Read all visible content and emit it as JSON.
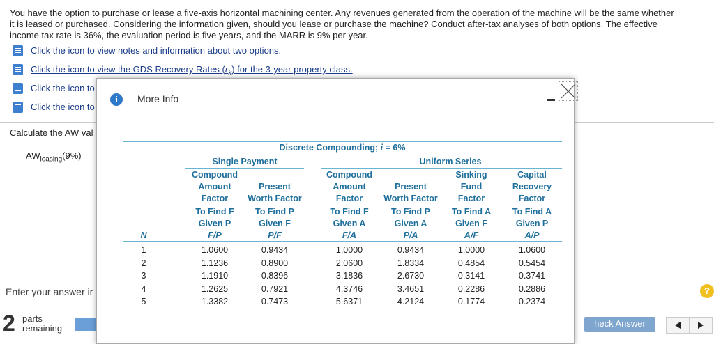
{
  "problem": {
    "lines": [
      "You have the option to purchase or lease a five-axis horizontal machining center. Any revenues generated from the operation of the machine will be the same whether",
      "it is leased or purchased. Considering the information given, should you lease or purchase the machine? Conduct after-tax analyses of both options. The effective",
      "income tax rate is 36%, the evaluation period is five years, and the MARR is 9% per year."
    ]
  },
  "links": [
    {
      "parts": [
        "Click the icon to view notes and information about two options."
      ]
    },
    {
      "parts": [
        "Click the icon to view the GDS Recovery Rates (",
        "r",
        "k",
        ") for the 3-year property class."
      ]
    },
    {
      "parts": [
        "Click the icon to"
      ]
    },
    {
      "parts": [
        "Click the icon to"
      ]
    }
  ],
  "question": {
    "calculate": "Calculate the AW val",
    "aw": [
      "AW",
      "leasing",
      "(9%) ="
    ],
    "enter": "Enter your answer ir"
  },
  "footer": {
    "count": "2",
    "parts": "parts",
    "remaining": "remaining",
    "check": "heck Answer"
  },
  "modal": {
    "title": "More Info",
    "table": {
      "title_parts": [
        "Discrete Compounding; ",
        "i",
        " = 6%"
      ],
      "groups": [
        "Single Payment",
        "Uniform Series"
      ],
      "n_header": "N",
      "columns": [
        {
          "lines": [
            "Compound",
            "Amount",
            "Factor"
          ],
          "find": [
            "To Find F",
            "Given P"
          ],
          "notation": "F/P"
        },
        {
          "lines": [
            "Present",
            "Worth Factor"
          ],
          "find": [
            "To Find P",
            "Given F"
          ],
          "notation": "P/F"
        },
        {
          "lines": [
            "Compound",
            "Amount",
            "Factor"
          ],
          "find": [
            "To Find F",
            "Given A"
          ],
          "notation": "F/A"
        },
        {
          "lines": [
            "Present",
            "Worth Factor"
          ],
          "find": [
            "To Find P",
            "Given A"
          ],
          "notation": "P/A"
        },
        {
          "lines": [
            "Sinking",
            "Fund",
            "Factor"
          ],
          "find": [
            "To Find A",
            "Given F"
          ],
          "notation": "A/F"
        },
        {
          "lines": [
            "Capital",
            "Recovery",
            "Factor"
          ],
          "find": [
            "To Find A",
            "Given P"
          ],
          "notation": "A/P"
        }
      ],
      "rows": [
        [
          "1",
          "1.0600",
          "0.9434",
          "1.0000",
          "0.9434",
          "1.0000",
          "1.0600"
        ],
        [
          "2",
          "1.1236",
          "0.8900",
          "2.0600",
          "1.8334",
          "0.4854",
          "0.5454"
        ],
        [
          "3",
          "1.1910",
          "0.8396",
          "3.1836",
          "2.6730",
          "0.3141",
          "0.3741"
        ],
        [
          "4",
          "1.2625",
          "0.7921",
          "4.3746",
          "3.4651",
          "0.2286",
          "0.2886"
        ],
        [
          "5",
          "1.3382",
          "0.7473",
          "5.6371",
          "4.2124",
          "0.1774",
          "0.2374"
        ]
      ]
    }
  }
}
